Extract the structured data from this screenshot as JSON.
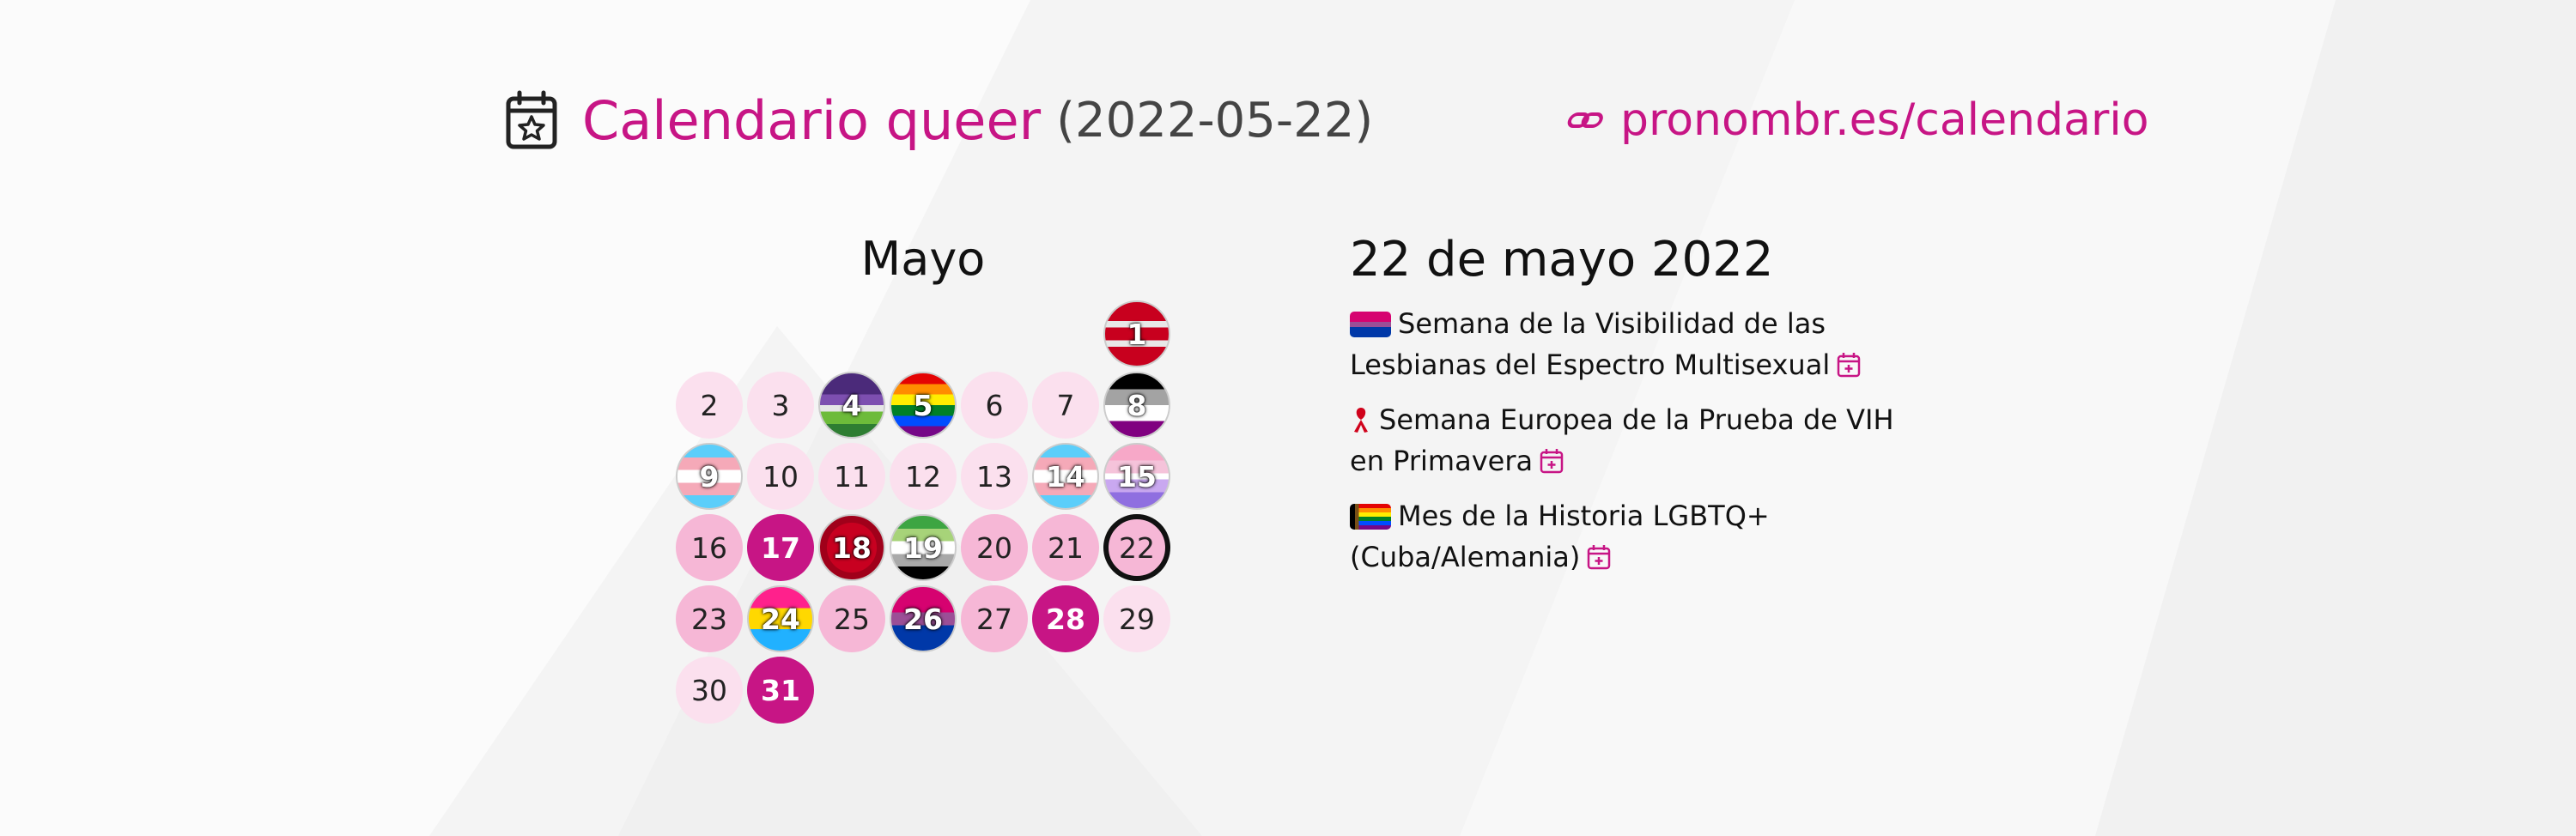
{
  "header": {
    "title": "Calendario queer",
    "date": "(2022-05-22)",
    "link": "pronombr.es/calendario"
  },
  "calendar": {
    "month": "Mayo",
    "days": [
      {
        "n": "1",
        "style": "flag",
        "flag": "red"
      },
      {
        "n": "2",
        "style": "light"
      },
      {
        "n": "3",
        "style": "light"
      },
      {
        "n": "4",
        "style": "flag",
        "flag": "purplegreen"
      },
      {
        "n": "5",
        "style": "flag",
        "flag": "rainbow"
      },
      {
        "n": "6",
        "style": "light"
      },
      {
        "n": "7",
        "style": "light"
      },
      {
        "n": "8",
        "style": "flag",
        "flag": "ace"
      },
      {
        "n": "9",
        "style": "flag",
        "flag": "trans"
      },
      {
        "n": "10",
        "style": "light"
      },
      {
        "n": "11",
        "style": "light"
      },
      {
        "n": "12",
        "style": "light"
      },
      {
        "n": "13",
        "style": "light"
      },
      {
        "n": "14",
        "style": "flag",
        "flag": "trans"
      },
      {
        "n": "15",
        "style": "flag",
        "flag": "pinkpurple"
      },
      {
        "n": "16",
        "style": "mid"
      },
      {
        "n": "17",
        "style": "dark"
      },
      {
        "n": "18",
        "style": "flag",
        "flag": "redribbon"
      },
      {
        "n": "19",
        "style": "flag",
        "flag": "aro"
      },
      {
        "n": "20",
        "style": "mid"
      },
      {
        "n": "21",
        "style": "mid"
      },
      {
        "n": "22",
        "style": "today"
      },
      {
        "n": "23",
        "style": "mid"
      },
      {
        "n": "24",
        "style": "flag",
        "flag": "pan"
      },
      {
        "n": "25",
        "style": "mid"
      },
      {
        "n": "26",
        "style": "flag",
        "flag": "bi"
      },
      {
        "n": "27",
        "style": "mid"
      },
      {
        "n": "28",
        "style": "dark"
      },
      {
        "n": "29",
        "style": "light"
      },
      {
        "n": "30",
        "style": "light"
      },
      {
        "n": "31",
        "style": "dark"
      }
    ]
  },
  "events_panel": {
    "heading": "22 de mayo 2022",
    "events": [
      {
        "text": "Semana de la Visibilidad de las Lesbianas del Espectro Multisexual",
        "icon": "bi-flag-icon"
      },
      {
        "text": "Semana Europea de la Prueba de VIH en Primavera",
        "icon": "red-ribbon-icon"
      },
      {
        "text": "Mes de la Historia LGBTQ+ (Cuba/Alemania)",
        "icon": "progress-flag-icon"
      }
    ]
  },
  "colors": {
    "accent": "#c71585",
    "light_day": "#fbe0ee",
    "mid_day": "#f6b7d6"
  }
}
